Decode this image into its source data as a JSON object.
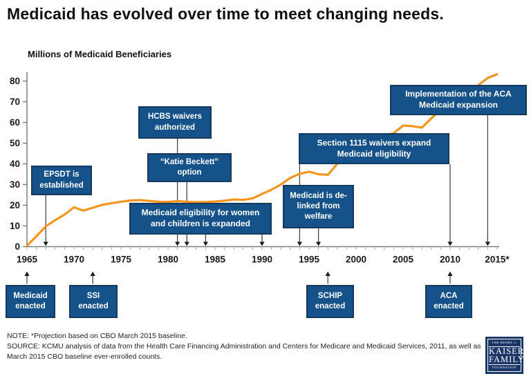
{
  "title": "Medicaid  has evolved over time to meet changing needs.",
  "subtitle": "Millions of Medicaid Beneficiaries",
  "chart_data": {
    "type": "line",
    "title": "Medicaid  has evolved over time to meet changing needs.",
    "ylabel": "Millions of Medicaid Beneficiaries",
    "xlabel": "",
    "xlim": [
      1965,
      2015.6
    ],
    "ylim": [
      0,
      85
    ],
    "grid": false,
    "y_ticks": [
      0,
      10,
      20,
      30,
      40,
      50,
      60,
      70,
      80
    ],
    "x_ticks": [
      1965,
      1970,
      1975,
      1980,
      1985,
      1990,
      1995,
      2000,
      2005,
      2010,
      2015
    ],
    "x_tick_labels": [
      "1965",
      "1970",
      "1975",
      "1980",
      "1985",
      "1990",
      "1995",
      "2000",
      "2005",
      "2010",
      "2015*"
    ],
    "series": [
      {
        "name": "Medicaid beneficiaries (millions)",
        "x": [
          1965,
          1966,
          1967,
          1968,
          1969,
          1970,
          1971,
          1972,
          1973,
          1974,
          1975,
          1976,
          1977,
          1978,
          1979,
          1980,
          1981,
          1982,
          1983,
          1984,
          1985,
          1986,
          1987,
          1988,
          1989,
          1990,
          1991,
          1992,
          1993,
          1994,
          1995,
          1996,
          1997,
          1998,
          1999,
          2000,
          2001,
          2002,
          2003,
          2004,
          2005,
          2006,
          2007,
          2008,
          2009,
          2010,
          2011,
          2012,
          2013,
          2014,
          2015
        ],
        "values": [
          0.5,
          5,
          9.8,
          12.8,
          15.5,
          19,
          17.4,
          18.8,
          20.2,
          21,
          21.7,
          22.3,
          22.5,
          22.1,
          21.7,
          21.6,
          22,
          21.7,
          21.5,
          21.6,
          21.8,
          22.2,
          22.8,
          22.6,
          23.3,
          25.5,
          27.5,
          30,
          33.2,
          35.2,
          36.2,
          35,
          34.7,
          40,
          43.5,
          46.5,
          49.5,
          52,
          53.8,
          54.8,
          58.5,
          58.2,
          57.5,
          62,
          66,
          68.5,
          71,
          74,
          78,
          81.5,
          83.3
        ]
      }
    ],
    "annotations": {
      "epsdt": {
        "label": "EPSDT is established",
        "arrow_years": [
          1967
        ]
      },
      "hcbs": {
        "label": "HCBS waivers authorized",
        "arrow_years": [
          1981
        ]
      },
      "katie": {
        "label": "“Katie Beckett” option",
        "arrow_years": [
          1982
        ]
      },
      "women": {
        "label": "Medicaid eligibility for women and children is expanded",
        "arrow_years": [
          1984,
          1990
        ]
      },
      "delinked": {
        "label": "Medicaid is de-linked from welfare",
        "arrow_years": [
          1996
        ]
      },
      "s1115": {
        "label": "Section 1115 waivers expand Medicaid eligibility",
        "arrow_years": [
          1994,
          2010
        ]
      },
      "aca_impl": {
        "label": "Implementation of the ACA Medicaid expansion",
        "arrow_years": [
          2014
        ]
      }
    },
    "milestones": {
      "medicaid": {
        "label": "Medicaid enacted",
        "year": 1965
      },
      "ssi": {
        "label": "SSI enacted",
        "year": 1972
      },
      "schip": {
        "label": "SCHIP enacted",
        "year": 1997
      },
      "aca": {
        "label": "ACA enacted",
        "year": 2010
      }
    }
  },
  "note": "NOTE: *Projection based on CBO March 2015 baseline.",
  "source": "SOURCE: KCMU analysis of data from the Health Care Financing Administration and Centers for Medicare and Medicaid Services, 2011, as well as March 2015 CBO baseline ever-enrolled counts.",
  "logo": {
    "line1": "THE HENRY J.",
    "line2": "KAISER",
    "line3": "FAMILY",
    "line4": "FOUNDATION"
  },
  "colors": {
    "line_orange": "#F6941E",
    "box_blue": "#16528A",
    "box_border": "#14395E",
    "axis_gray": "#7F7F7F",
    "tick_gray": "#A6A6A6",
    "arrow_dark": "#3A3A3A",
    "label_dark": "#1A1A1A",
    "logo_navy": "#1B3768"
  }
}
